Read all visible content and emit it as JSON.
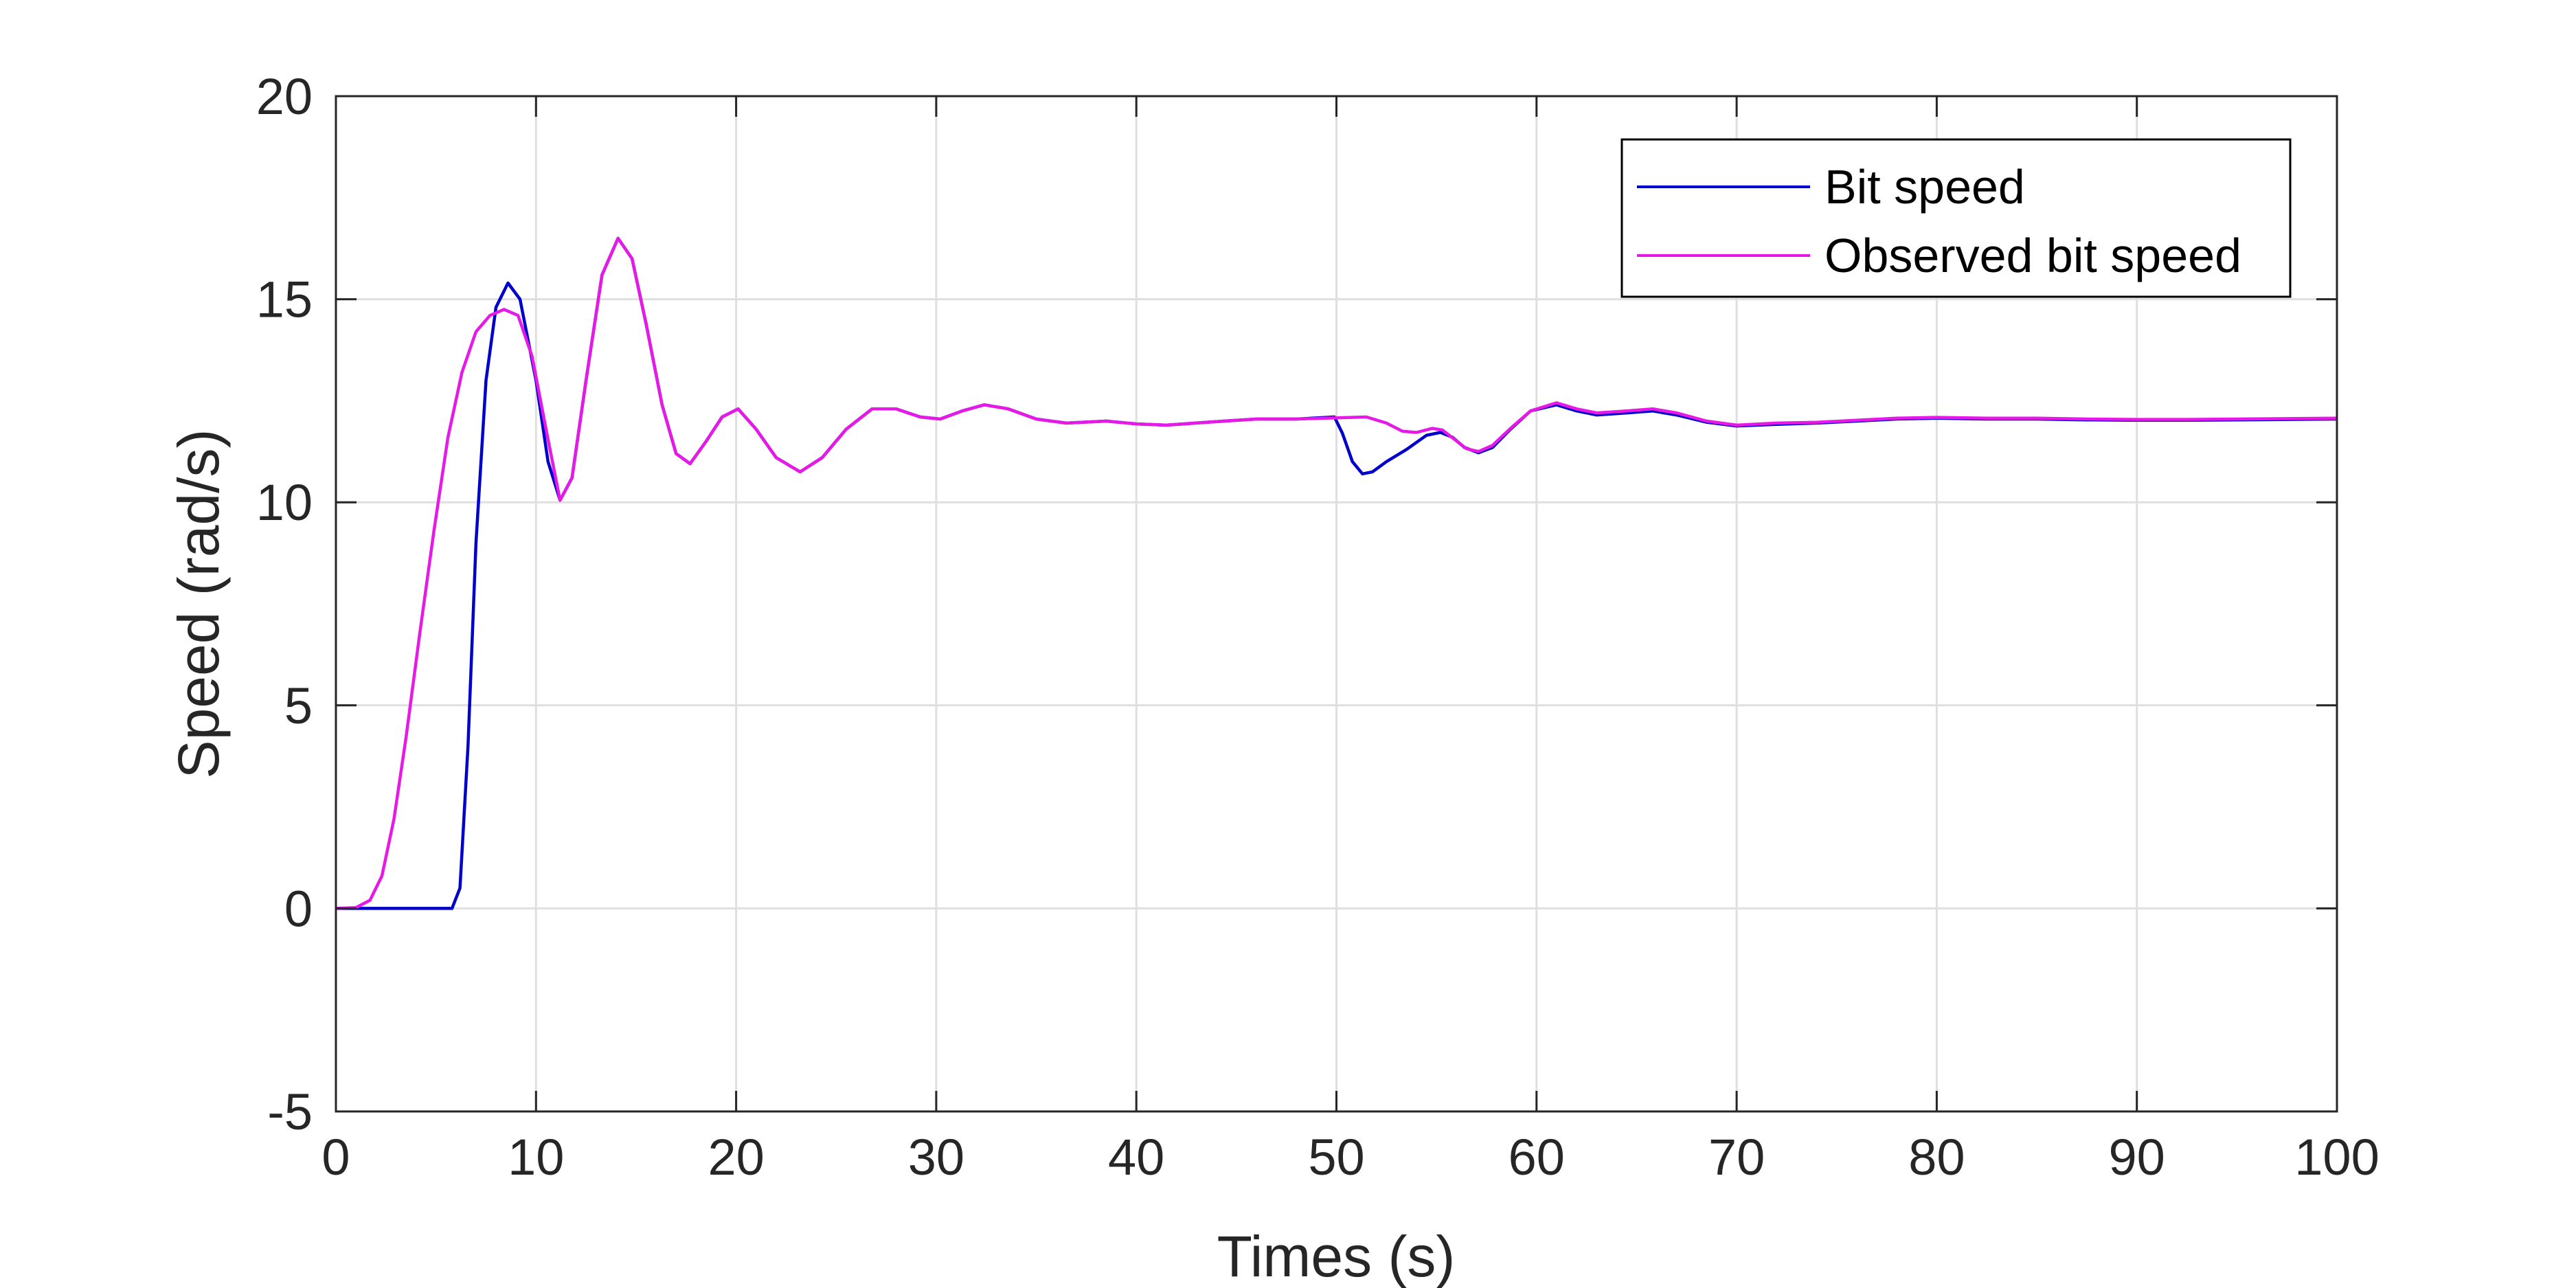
{
  "chart_data": {
    "type": "line",
    "title": "",
    "xlabel": "Times (s)",
    "ylabel": "Speed (rad/s)",
    "xlim": [
      0,
      100
    ],
    "ylim": [
      -5,
      20
    ],
    "xticks": [
      0,
      10,
      20,
      30,
      40,
      50,
      60,
      70,
      80,
      90,
      100
    ],
    "yticks": [
      -5,
      0,
      5,
      10,
      15,
      20
    ],
    "grid": true,
    "legend_position": "top-right",
    "series": [
      {
        "name": "Bit speed",
        "color": "#0000CC",
        "points": [
          [
            0,
            0
          ],
          [
            5.8,
            0
          ],
          [
            6.2,
            0.5
          ],
          [
            6.6,
            4
          ],
          [
            7,
            9
          ],
          [
            7.5,
            13
          ],
          [
            8,
            14.8
          ],
          [
            8.6,
            15.4
          ],
          [
            9.2,
            15
          ],
          [
            10,
            13
          ],
          [
            10.6,
            11
          ],
          [
            11.2,
            10.05
          ],
          [
            11.8,
            10.6
          ],
          [
            12.5,
            13
          ],
          [
            13.3,
            15.6
          ],
          [
            14.1,
            16.5
          ],
          [
            14.8,
            16
          ],
          [
            15.5,
            14.4
          ],
          [
            16.3,
            12.4
          ],
          [
            17,
            11.2
          ],
          [
            17.7,
            10.95
          ],
          [
            18.5,
            11.5
          ],
          [
            19.3,
            12.1
          ],
          [
            20.1,
            12.3
          ],
          [
            21,
            11.8
          ],
          [
            22,
            11.1
          ],
          [
            23.2,
            10.75
          ],
          [
            24.3,
            11.1
          ],
          [
            25.5,
            11.8
          ],
          [
            26.8,
            12.3
          ],
          [
            28,
            12.3
          ],
          [
            29.2,
            12.1
          ],
          [
            30.2,
            12.05
          ],
          [
            31.3,
            12.25
          ],
          [
            32.4,
            12.4
          ],
          [
            33.6,
            12.3
          ],
          [
            35,
            12.05
          ],
          [
            36.5,
            11.95
          ],
          [
            38.5,
            12
          ],
          [
            40,
            11.93
          ],
          [
            41.5,
            11.9
          ],
          [
            43.5,
            11.97
          ],
          [
            46,
            12.05
          ],
          [
            48,
            12.05
          ],
          [
            49.9,
            12.1
          ],
          [
            50.3,
            11.7
          ],
          [
            50.8,
            11
          ],
          [
            51.3,
            10.7
          ],
          [
            51.8,
            10.75
          ],
          [
            52.5,
            11
          ],
          [
            53.5,
            11.3
          ],
          [
            54.5,
            11.65
          ],
          [
            55.2,
            11.72
          ],
          [
            55.8,
            11.6
          ],
          [
            56.4,
            11.35
          ],
          [
            57.1,
            11.22
          ],
          [
            57.8,
            11.35
          ],
          [
            58.7,
            11.8
          ],
          [
            59.7,
            12.25
          ],
          [
            61,
            12.4
          ],
          [
            62,
            12.25
          ],
          [
            63,
            12.15
          ],
          [
            64.5,
            12.2
          ],
          [
            65.8,
            12.25
          ],
          [
            67,
            12.15
          ],
          [
            68.5,
            11.97
          ],
          [
            70,
            11.88
          ],
          [
            72,
            11.92
          ],
          [
            74,
            11.95
          ],
          [
            76,
            12
          ],
          [
            78,
            12.05
          ],
          [
            80,
            12.07
          ],
          [
            82.5,
            12.05
          ],
          [
            85,
            12.05
          ],
          [
            87.5,
            12.03
          ],
          [
            90,
            12.02
          ],
          [
            92.5,
            12.02
          ],
          [
            95,
            12.03
          ],
          [
            97.5,
            12.04
          ],
          [
            100,
            12.05
          ]
        ]
      },
      {
        "name": "Observed bit speed",
        "color": "#E619E6",
        "points": [
          [
            0,
            0
          ],
          [
            1,
            0.02
          ],
          [
            1.7,
            0.2
          ],
          [
            2.3,
            0.8
          ],
          [
            2.9,
            2.2
          ],
          [
            3.5,
            4.2
          ],
          [
            4.2,
            6.8
          ],
          [
            4.9,
            9.3
          ],
          [
            5.6,
            11.6
          ],
          [
            6.3,
            13.2
          ],
          [
            7,
            14.2
          ],
          [
            7.7,
            14.6
          ],
          [
            8.4,
            14.75
          ],
          [
            9.1,
            14.6
          ],
          [
            9.8,
            13.6
          ],
          [
            10.5,
            11.8
          ],
          [
            11.2,
            10.05
          ],
          [
            11.8,
            10.6
          ],
          [
            12.5,
            13
          ],
          [
            13.3,
            15.6
          ],
          [
            14.1,
            16.5
          ],
          [
            14.8,
            16
          ],
          [
            15.5,
            14.4
          ],
          [
            16.3,
            12.4
          ],
          [
            17,
            11.2
          ],
          [
            17.7,
            10.95
          ],
          [
            18.5,
            11.5
          ],
          [
            19.3,
            12.1
          ],
          [
            20.1,
            12.3
          ],
          [
            21,
            11.8
          ],
          [
            22,
            11.1
          ],
          [
            23.2,
            10.75
          ],
          [
            24.3,
            11.1
          ],
          [
            25.5,
            11.8
          ],
          [
            26.8,
            12.3
          ],
          [
            28,
            12.3
          ],
          [
            29.2,
            12.1
          ],
          [
            30.2,
            12.05
          ],
          [
            31.3,
            12.25
          ],
          [
            32.4,
            12.4
          ],
          [
            33.6,
            12.3
          ],
          [
            35,
            12.05
          ],
          [
            36.5,
            11.95
          ],
          [
            38.5,
            12
          ],
          [
            40,
            11.93
          ],
          [
            41.5,
            11.9
          ],
          [
            43.5,
            11.97
          ],
          [
            46,
            12.05
          ],
          [
            48,
            12.05
          ],
          [
            50,
            12.08
          ],
          [
            51.5,
            12.1
          ],
          [
            52.5,
            11.95
          ],
          [
            53.3,
            11.75
          ],
          [
            54,
            11.72
          ],
          [
            54.8,
            11.82
          ],
          [
            55.3,
            11.78
          ],
          [
            55.9,
            11.55
          ],
          [
            56.5,
            11.32
          ],
          [
            57.1,
            11.25
          ],
          [
            57.8,
            11.4
          ],
          [
            58.7,
            11.82
          ],
          [
            59.7,
            12.25
          ],
          [
            61,
            12.45
          ],
          [
            62,
            12.3
          ],
          [
            63,
            12.2
          ],
          [
            64.5,
            12.25
          ],
          [
            65.8,
            12.3
          ],
          [
            67,
            12.2
          ],
          [
            68.5,
            12
          ],
          [
            70,
            11.9
          ],
          [
            72,
            11.95
          ],
          [
            74,
            11.97
          ],
          [
            76,
            12.02
          ],
          [
            78,
            12.07
          ],
          [
            80,
            12.09
          ],
          [
            82.5,
            12.07
          ],
          [
            85,
            12.07
          ],
          [
            87.5,
            12.05
          ],
          [
            90,
            12.04
          ],
          [
            92.5,
            12.04
          ],
          [
            95,
            12.05
          ],
          [
            97.5,
            12.06
          ],
          [
            100,
            12.07
          ]
        ]
      }
    ]
  }
}
